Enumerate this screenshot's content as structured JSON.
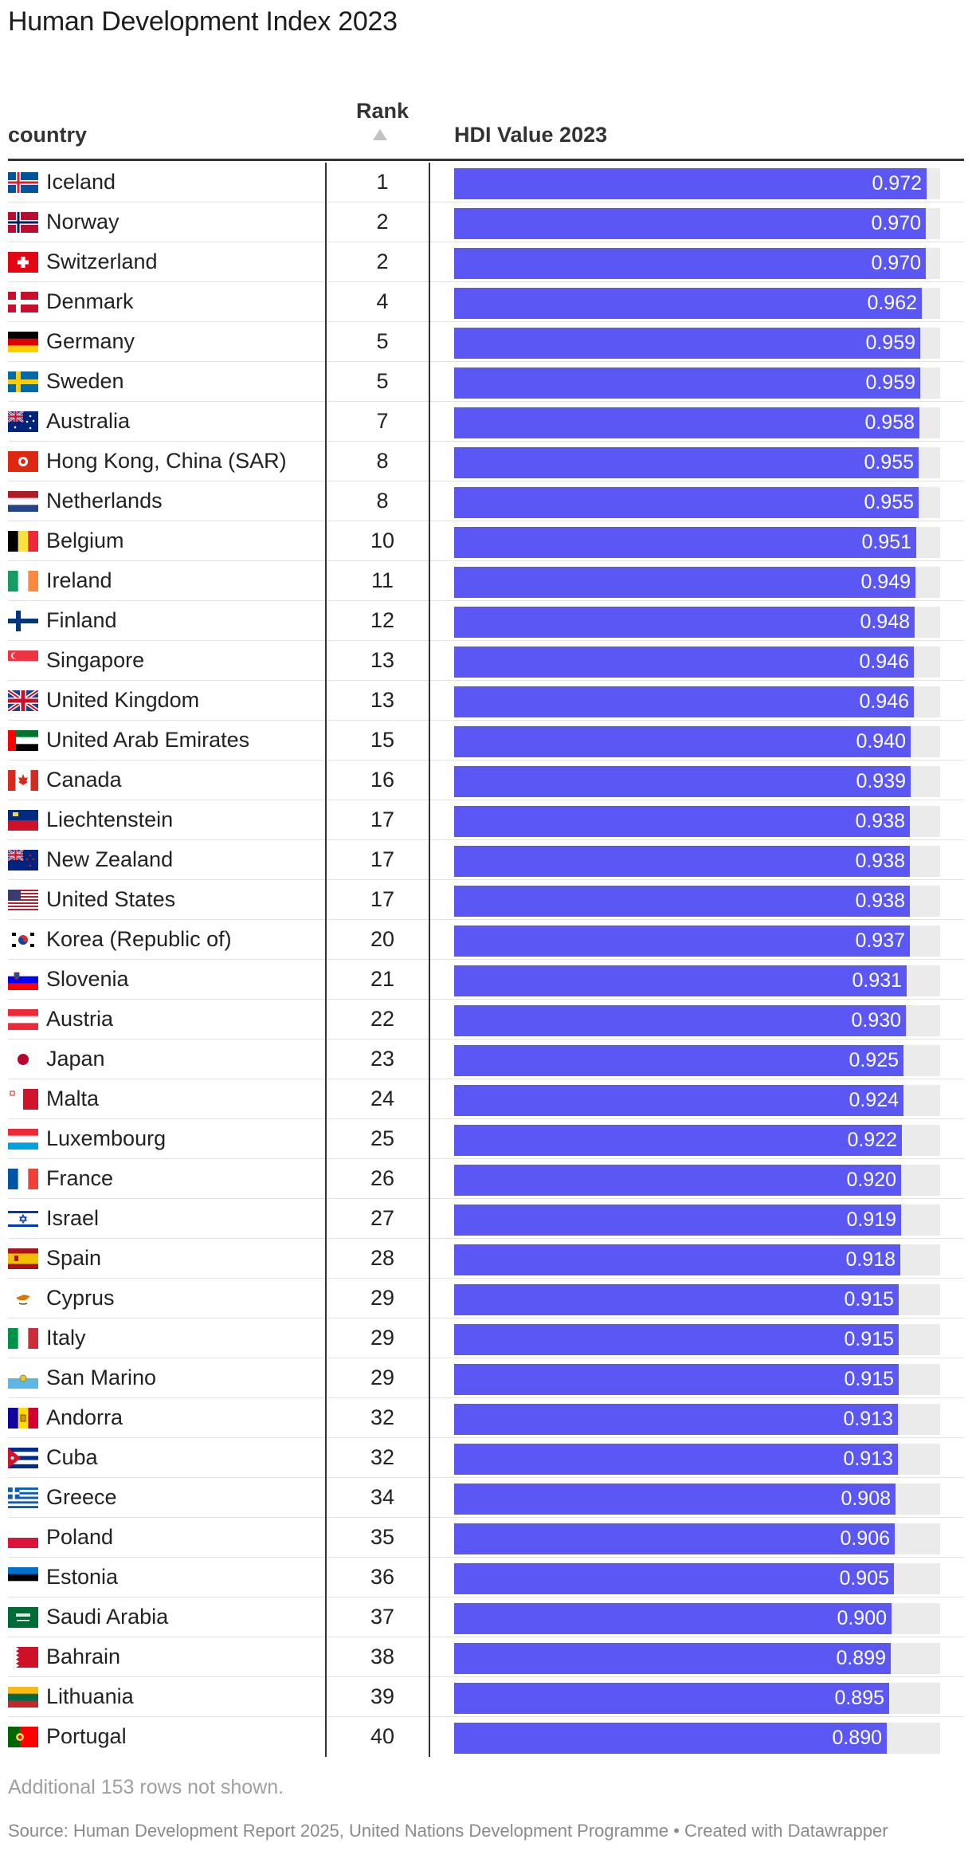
{
  "title": "Human Development Index 2023",
  "columns": {
    "country": "country",
    "rank": "Rank",
    "hdi": "HDI Value 2023"
  },
  "note": "Additional 153 rows not shown.",
  "source": "Source: Human Development Report 2025, United Nations Development Programme • Created with Datawrapper",
  "colors": {
    "bar": "#5b57f5",
    "bar_track": "#ebebeb",
    "rule": "#333333"
  },
  "chart_data": {
    "type": "table",
    "bar_range": [
      0,
      1.0
    ],
    "rows": [
      {
        "country": "Iceland",
        "rank": "1",
        "value": "0.972",
        "flag": "flag-iceland"
      },
      {
        "country": "Norway",
        "rank": "2",
        "value": "0.970",
        "flag": "flag-norway"
      },
      {
        "country": "Switzerland",
        "rank": "2",
        "value": "0.970",
        "flag": "flag-switzerland"
      },
      {
        "country": "Denmark",
        "rank": "4",
        "value": "0.962",
        "flag": "flag-denmark"
      },
      {
        "country": "Germany",
        "rank": "5",
        "value": "0.959",
        "flag": "flag-germany"
      },
      {
        "country": "Sweden",
        "rank": "5",
        "value": "0.959",
        "flag": "flag-sweden"
      },
      {
        "country": "Australia",
        "rank": "7",
        "value": "0.958",
        "flag": "flag-australia"
      },
      {
        "country": "Hong Kong, China (SAR)",
        "rank": "8",
        "value": "0.955",
        "flag": "flag-hong-kong"
      },
      {
        "country": "Netherlands",
        "rank": "8",
        "value": "0.955",
        "flag": "flag-netherlands"
      },
      {
        "country": "Belgium",
        "rank": "10",
        "value": "0.951",
        "flag": "flag-belgium"
      },
      {
        "country": "Ireland",
        "rank": "11",
        "value": "0.949",
        "flag": "flag-ireland"
      },
      {
        "country": "Finland",
        "rank": "12",
        "value": "0.948",
        "flag": "flag-finland"
      },
      {
        "country": "Singapore",
        "rank": "13",
        "value": "0.946",
        "flag": "flag-singapore"
      },
      {
        "country": "United Kingdom",
        "rank": "13",
        "value": "0.946",
        "flag": "flag-united-kingdom"
      },
      {
        "country": "United Arab Emirates",
        "rank": "15",
        "value": "0.940",
        "flag": "flag-uae"
      },
      {
        "country": "Canada",
        "rank": "16",
        "value": "0.939",
        "flag": "flag-canada"
      },
      {
        "country": "Liechtenstein",
        "rank": "17",
        "value": "0.938",
        "flag": "flag-liechtenstein"
      },
      {
        "country": "New Zealand",
        "rank": "17",
        "value": "0.938",
        "flag": "flag-new-zealand"
      },
      {
        "country": "United States",
        "rank": "17",
        "value": "0.938",
        "flag": "flag-united-states"
      },
      {
        "country": "Korea (Republic of)",
        "rank": "20",
        "value": "0.937",
        "flag": "flag-korea"
      },
      {
        "country": "Slovenia",
        "rank": "21",
        "value": "0.931",
        "flag": "flag-slovenia"
      },
      {
        "country": "Austria",
        "rank": "22",
        "value": "0.930",
        "flag": "flag-austria"
      },
      {
        "country": "Japan",
        "rank": "23",
        "value": "0.925",
        "flag": "flag-japan"
      },
      {
        "country": "Malta",
        "rank": "24",
        "value": "0.924",
        "flag": "flag-malta"
      },
      {
        "country": "Luxembourg",
        "rank": "25",
        "value": "0.922",
        "flag": "flag-luxembourg"
      },
      {
        "country": "France",
        "rank": "26",
        "value": "0.920",
        "flag": "flag-france"
      },
      {
        "country": "Israel",
        "rank": "27",
        "value": "0.919",
        "flag": "flag-israel"
      },
      {
        "country": "Spain",
        "rank": "28",
        "value": "0.918",
        "flag": "flag-spain"
      },
      {
        "country": "Cyprus",
        "rank": "29",
        "value": "0.915",
        "flag": "flag-cyprus"
      },
      {
        "country": "Italy",
        "rank": "29",
        "value": "0.915",
        "flag": "flag-italy"
      },
      {
        "country": "San Marino",
        "rank": "29",
        "value": "0.915",
        "flag": "flag-san-marino"
      },
      {
        "country": "Andorra",
        "rank": "32",
        "value": "0.913",
        "flag": "flag-andorra"
      },
      {
        "country": "Cuba",
        "rank": "32",
        "value": "0.913",
        "flag": "flag-cuba"
      },
      {
        "country": "Greece",
        "rank": "34",
        "value": "0.908",
        "flag": "flag-greece"
      },
      {
        "country": "Poland",
        "rank": "35",
        "value": "0.906",
        "flag": "flag-poland"
      },
      {
        "country": "Estonia",
        "rank": "36",
        "value": "0.905",
        "flag": "flag-estonia"
      },
      {
        "country": "Saudi Arabia",
        "rank": "37",
        "value": "0.900",
        "flag": "flag-saudi-arabia"
      },
      {
        "country": "Bahrain",
        "rank": "38",
        "value": "0.899",
        "flag": "flag-bahrain"
      },
      {
        "country": "Lithuania",
        "rank": "39",
        "value": "0.895",
        "flag": "flag-lithuania"
      },
      {
        "country": "Portugal",
        "rank": "40",
        "value": "0.890",
        "flag": "flag-portugal"
      }
    ]
  }
}
